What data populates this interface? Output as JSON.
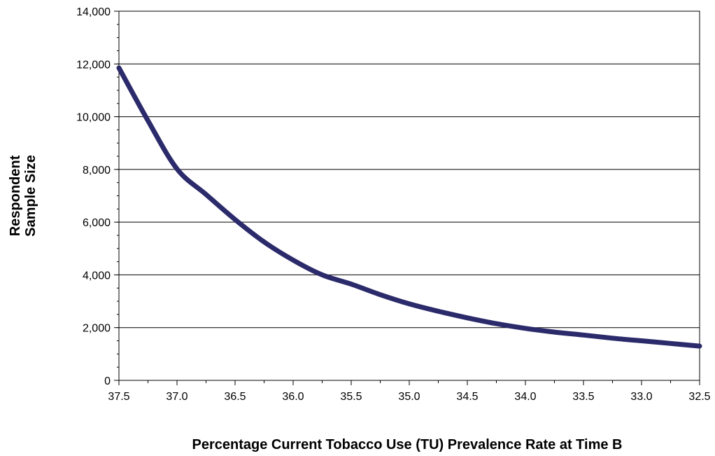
{
  "chart_data": {
    "type": "line",
    "title": "",
    "xlabel": "Percentage Current Tobacco Use (TU) Prevalence Rate at Time B",
    "ylabel_lines": [
      "Respondent",
      "Sample Size"
    ],
    "xlim": [
      37.5,
      32.5
    ],
    "x_reversed": true,
    "ylim": [
      0,
      14000
    ],
    "x_ticks": [
      37.5,
      37.0,
      36.5,
      36.0,
      35.5,
      35.0,
      34.5,
      34.0,
      33.5,
      33.0,
      32.5
    ],
    "x_tick_labels": [
      "37.5",
      "37.0",
      "36.5",
      "36.0",
      "35.5",
      "35.0",
      "34.5",
      "34.0",
      "33.5",
      "33.0",
      "32.5"
    ],
    "y_ticks": [
      0,
      2000,
      4000,
      6000,
      8000,
      10000,
      12000,
      14000
    ],
    "y_tick_labels": [
      "0",
      "2,000",
      "4,000",
      "6,000",
      "8,000",
      "10,000",
      "12,000",
      "14,000"
    ],
    "grid": "horizontal",
    "legend": "none",
    "series": [
      {
        "color": "#2B2A6B",
        "x": [
          37.5,
          37.25,
          37.0,
          36.75,
          36.5,
          36.25,
          36.0,
          35.75,
          35.5,
          35.25,
          35.0,
          34.75,
          34.5,
          34.25,
          34.0,
          33.75,
          33.5,
          33.25,
          33.0,
          32.75,
          32.5
        ],
        "y": [
          11850,
          9850,
          8020,
          7050,
          6100,
          5250,
          4560,
          4000,
          3650,
          3250,
          2900,
          2620,
          2370,
          2150,
          1970,
          1830,
          1720,
          1600,
          1500,
          1400,
          1300
        ]
      }
    ]
  }
}
